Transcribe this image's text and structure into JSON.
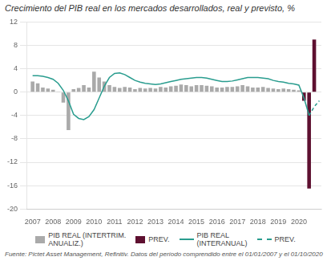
{
  "chart_data": {
    "type": "bar",
    "title": "Crecimiento del PIB real en los mercados desarrollados, real y previsto, %",
    "footnote": "Fuente: Pictet Asset Management, Refinitiv. Datos del período comprendido entre el 01/01/2007 y el 01/10/2020",
    "xlim": [
      2006.7,
      2021.1
    ],
    "xticks": [
      2007,
      2008,
      2009,
      2010,
      2011,
      2012,
      2013,
      2014,
      2015,
      2016,
      2017,
      2018,
      2019,
      2020
    ],
    "ylim": [
      -20,
      12
    ],
    "yticks": [
      -20,
      -16,
      -12,
      -8,
      -4,
      0,
      4,
      8,
      12
    ],
    "grid": "y",
    "legend": "bottom",
    "series": [
      {
        "name": "PIB REAL (INTERTRIM.\nANUALIZ.)",
        "type": "bar",
        "color": "#aaaaaa",
        "x": [
          2007,
          2007.25,
          2007.5,
          2007.75,
          2008,
          2008.25,
          2008.5,
          2008.75,
          2009,
          2009.25,
          2009.5,
          2009.75,
          2010,
          2010.25,
          2010.5,
          2010.75,
          2011,
          2011.25,
          2011.5,
          2011.75,
          2012,
          2012.25,
          2012.5,
          2012.75,
          2013,
          2013.25,
          2013.5,
          2013.75,
          2014,
          2014.25,
          2014.5,
          2014.75,
          2015,
          2015.25,
          2015.5,
          2015.75,
          2016,
          2016.25,
          2016.5,
          2016.75,
          2017,
          2017.25,
          2017.5,
          2017.75,
          2018,
          2018.25,
          2018.5,
          2018.75,
          2019,
          2019.25,
          2019.5,
          2019.75,
          2020
        ],
        "values": [
          1.8,
          1.5,
          0.8,
          0.6,
          0.4,
          0.1,
          -1.8,
          -6.5,
          0.5,
          0.7,
          1.2,
          0.8,
          3.5,
          2.5,
          1.8,
          1.2,
          0.9,
          0.7,
          0.9,
          0.8,
          0.5,
          0.7,
          0.6,
          0.7,
          0.6,
          0.9,
          0.8,
          1.0,
          1.1,
          1.3,
          1.2,
          1.0,
          1.2,
          1.2,
          1.1,
          1.0,
          0.8,
          0.8,
          0.9,
          0.9,
          1.0,
          1.2,
          1.0,
          0.8,
          0.8,
          0.9,
          0.7,
          0.6,
          0.5,
          0.6,
          0.5,
          0.4,
          0.3
        ]
      },
      {
        "name": "PREV.",
        "type": "bar",
        "color": "#5e1030",
        "x": [
          2020.25,
          2020.5,
          2020.75
        ],
        "values": [
          -1.5,
          -16.5,
          9.0
        ]
      },
      {
        "name": "PIB REAL\n(INTERANUAL)",
        "type": "line",
        "color": "#2a9d8f",
        "line_style": "solid",
        "x": [
          2007.0,
          2007.25,
          2007.5,
          2007.75,
          2008.0,
          2008.25,
          2008.5,
          2008.75,
          2009.0,
          2009.25,
          2009.5,
          2009.75,
          2010.0,
          2010.25,
          2010.5,
          2010.75,
          2011.0,
          2011.25,
          2011.5,
          2011.75,
          2012.0,
          2012.25,
          2012.5,
          2012.75,
          2013.0,
          2013.25,
          2013.5,
          2013.75,
          2014.0,
          2014.25,
          2014.5,
          2014.75,
          2015.0,
          2015.25,
          2015.5,
          2015.75,
          2016.0,
          2016.25,
          2016.5,
          2016.75,
          2017.0,
          2017.25,
          2017.5,
          2017.75,
          2018.0,
          2018.25,
          2018.5,
          2018.75,
          2019.0,
          2019.25,
          2019.5,
          2019.75,
          2020.0,
          2020.25,
          2020.5
        ],
        "values": [
          2.8,
          2.8,
          2.7,
          2.5,
          2.2,
          1.5,
          0.3,
          -1.5,
          -3.8,
          -4.5,
          -4.7,
          -4.2,
          -3.0,
          -1.0,
          1.0,
          2.5,
          3.2,
          3.3,
          3.0,
          2.5,
          2.0,
          1.7,
          1.5,
          1.4,
          1.3,
          1.4,
          1.6,
          1.8,
          2.0,
          2.2,
          2.3,
          2.4,
          2.5,
          2.5,
          2.4,
          2.2,
          2.0,
          1.8,
          1.8,
          1.9,
          2.1,
          2.3,
          2.5,
          2.5,
          2.5,
          2.4,
          2.3,
          2.0,
          1.8,
          1.7,
          1.5,
          1.4,
          1.2,
          -1.0,
          -4.0
        ]
      },
      {
        "name": "PREV.",
        "type": "line",
        "color": "#2a9d8f",
        "line_style": "dashed",
        "x": [
          2020.5,
          2020.75,
          2021.0
        ],
        "values": [
          -4.0,
          -2.5,
          -1.5
        ]
      }
    ]
  }
}
